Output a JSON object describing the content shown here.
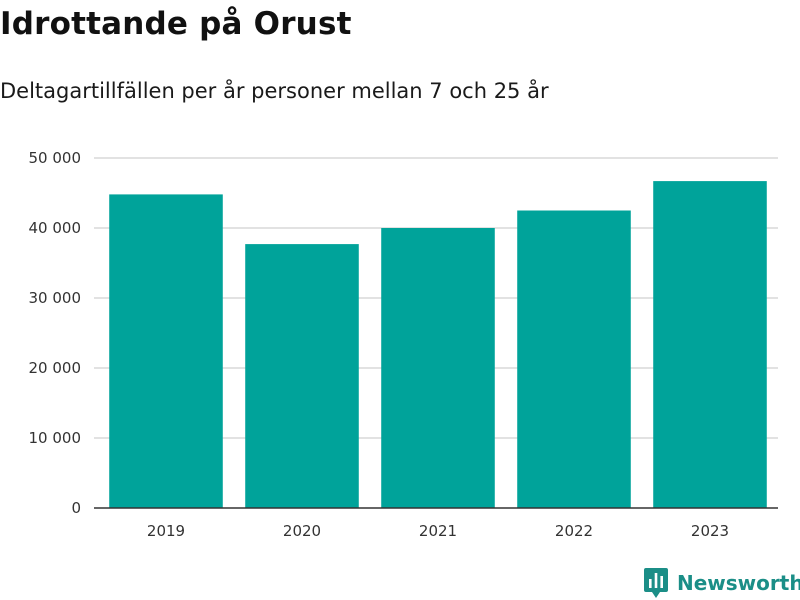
{
  "colors": {
    "bar": "#00a39a",
    "grid": "#d9d9d9",
    "axis": "#333333",
    "brand": "#1b8e87"
  },
  "brand": {
    "name": "Newsworthy",
    "icon": "newsworthy-logo-icon"
  },
  "chart_data": {
    "type": "bar",
    "title": "Idrottande på Orust",
    "subtitle": "Deltagartillfällen per år personer mellan 7 och 25 år",
    "xlabel": "",
    "ylabel": "",
    "categories": [
      "2019",
      "2020",
      "2021",
      "2022",
      "2023"
    ],
    "values": [
      44800,
      37700,
      40000,
      42500,
      46700
    ],
    "ylim": [
      0,
      50000
    ],
    "yticks": [
      0,
      10000,
      20000,
      30000,
      40000,
      50000
    ],
    "ytick_labels": [
      "0",
      "10 000",
      "20 000",
      "30 000",
      "40 000",
      "50 000"
    ],
    "grid": true,
    "legend": "none"
  }
}
